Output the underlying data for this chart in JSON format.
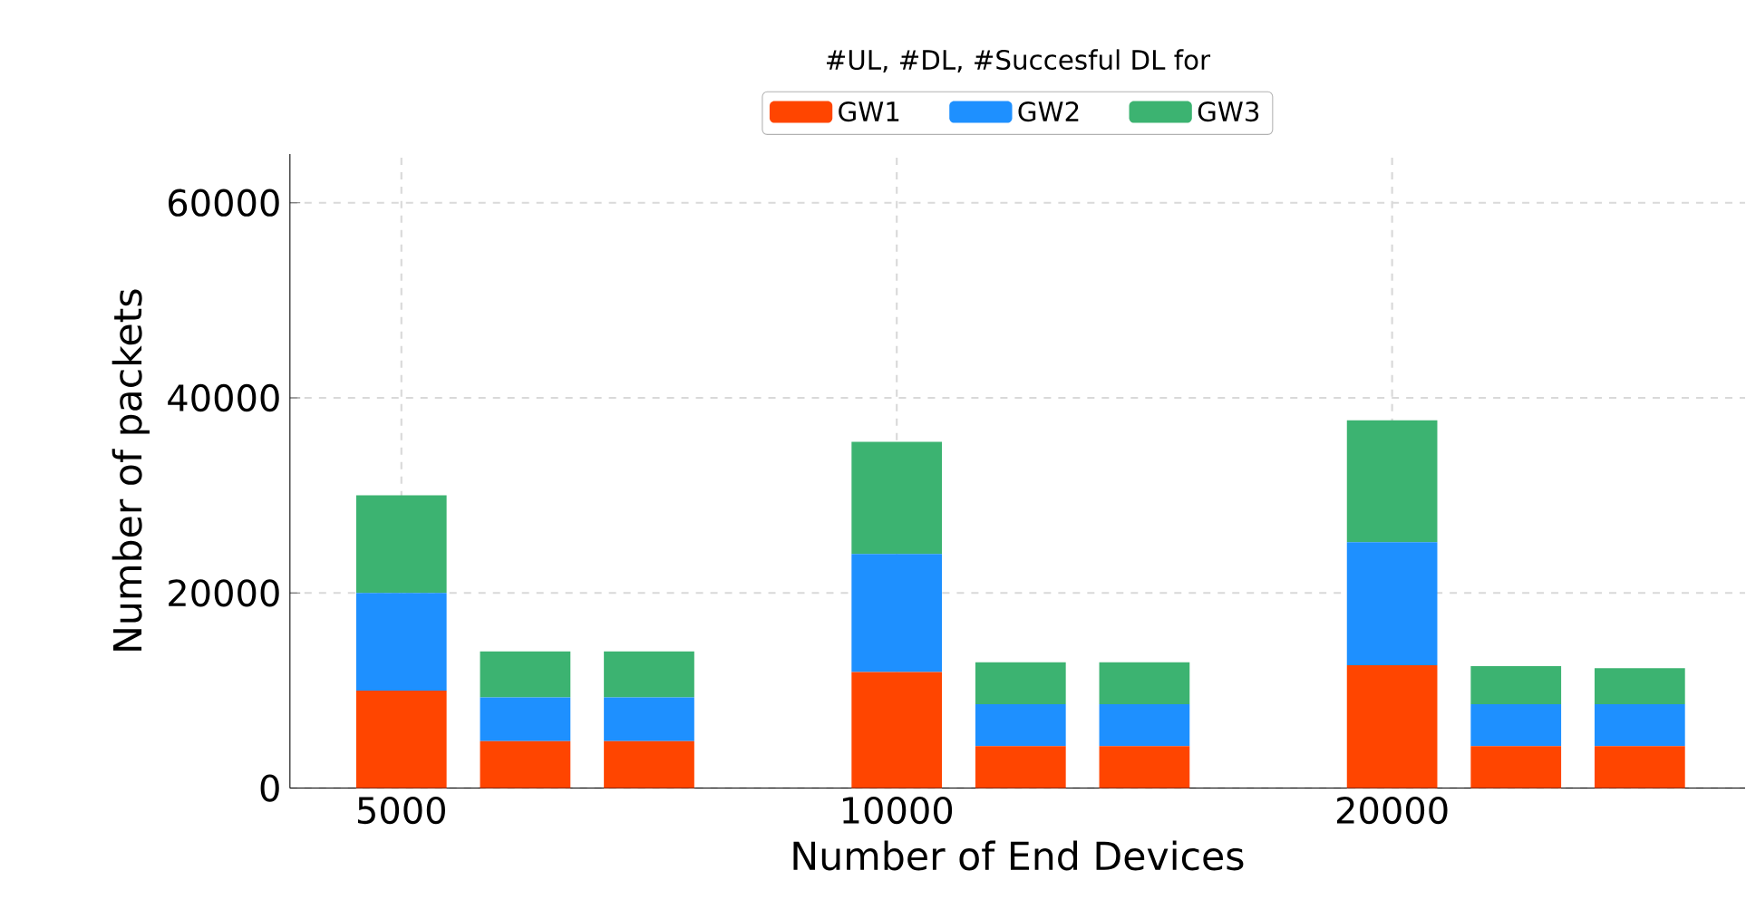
{
  "chart_data": {
    "type": "bar",
    "stacked": true,
    "xlabel": "Number of End Devices",
    "ylabel": "Number of packets",
    "legend_title": "#UL, #DL, #Succesful DL for",
    "legend": "top",
    "grid": true,
    "categories": [
      "5000",
      null,
      null,
      null,
      "10000",
      null,
      null,
      null,
      "20000",
      null,
      null
    ],
    "series": [
      {
        "name": "GW1",
        "color": "#ff4500",
        "values": [
          10000,
          4800,
          4800,
          null,
          11900,
          4300,
          4300,
          null,
          12600,
          4300,
          4300
        ]
      },
      {
        "name": "GW2",
        "color": "#1e90ff",
        "values": [
          10000,
          4500,
          4500,
          null,
          12100,
          4300,
          4300,
          null,
          12600,
          4300,
          4300
        ]
      },
      {
        "name": "GW3",
        "color": "#3cb371",
        "values": [
          10000,
          4700,
          4700,
          null,
          11500,
          4300,
          4300,
          null,
          12500,
          3900,
          3700
        ]
      }
    ],
    "ylim": [
      0,
      65000
    ],
    "yticks": [
      0,
      20000,
      40000,
      60000
    ]
  }
}
